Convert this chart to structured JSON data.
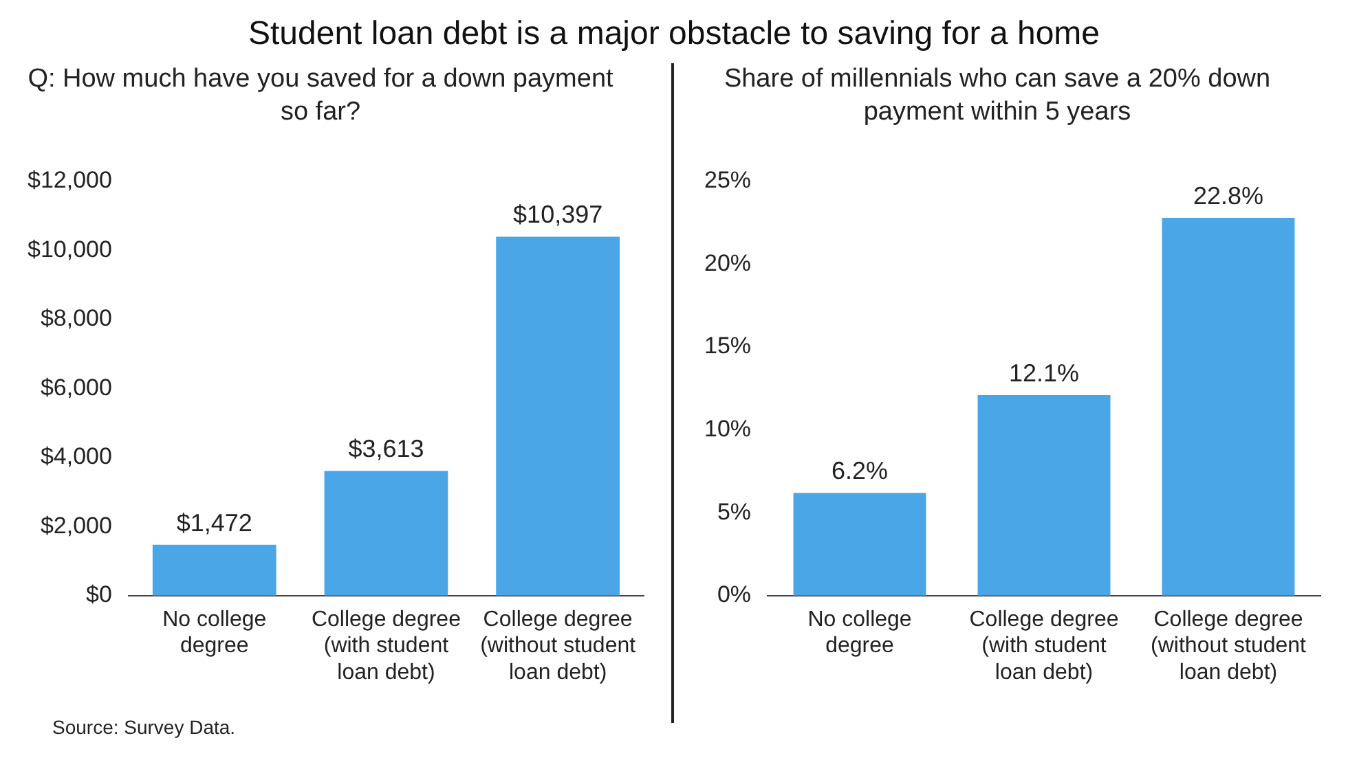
{
  "chart_data": [
    {
      "type": "bar",
      "title": "Student loan debt is a major obstacle to saving for a home",
      "subtitle": "Q: How much have you saved for a down payment so far?",
      "categories": [
        "No college degree",
        "College degree (with student loan debt)",
        "College degree (without student loan debt)"
      ],
      "values": [
        1472,
        3613,
        10397
      ],
      "value_labels": [
        "$1,472",
        "$3,613",
        "$10,397"
      ],
      "color": "#4ba6e8",
      "ylim": [
        0,
        12000
      ],
      "yticks": [
        {
          "value": 0,
          "label": "$0"
        },
        {
          "value": 2000,
          "label": "$2,000"
        },
        {
          "value": 4000,
          "label": "$4,000"
        },
        {
          "value": 6000,
          "label": "$6,000"
        },
        {
          "value": 8000,
          "label": "$8,000"
        },
        {
          "value": 10000,
          "label": "$10,000"
        },
        {
          "value": 12000,
          "label": "$12,000"
        }
      ],
      "grid": false,
      "legend": false,
      "annotations": [
        "Source: Survey Data."
      ]
    },
    {
      "type": "bar",
      "title": "Share of millennials who can save a 20% down payment within 5 years",
      "categories": [
        "No college degree",
        "College degree (with student loan debt)",
        "College degree (without student loan debt)"
      ],
      "values": [
        6.2,
        12.1,
        22.8
      ],
      "value_labels": [
        "6.2%",
        "12.1%",
        "22.8%"
      ],
      "color": "#4ba6e8",
      "ylim": [
        0,
        25
      ],
      "yticks": [
        {
          "value": 0,
          "label": "0%"
        },
        {
          "value": 5,
          "label": "5%"
        },
        {
          "value": 10,
          "label": "10%"
        },
        {
          "value": 15,
          "label": "15%"
        },
        {
          "value": 20,
          "label": "20%"
        },
        {
          "value": 25,
          "label": "25%"
        }
      ],
      "grid": false,
      "legend": false
    }
  ]
}
